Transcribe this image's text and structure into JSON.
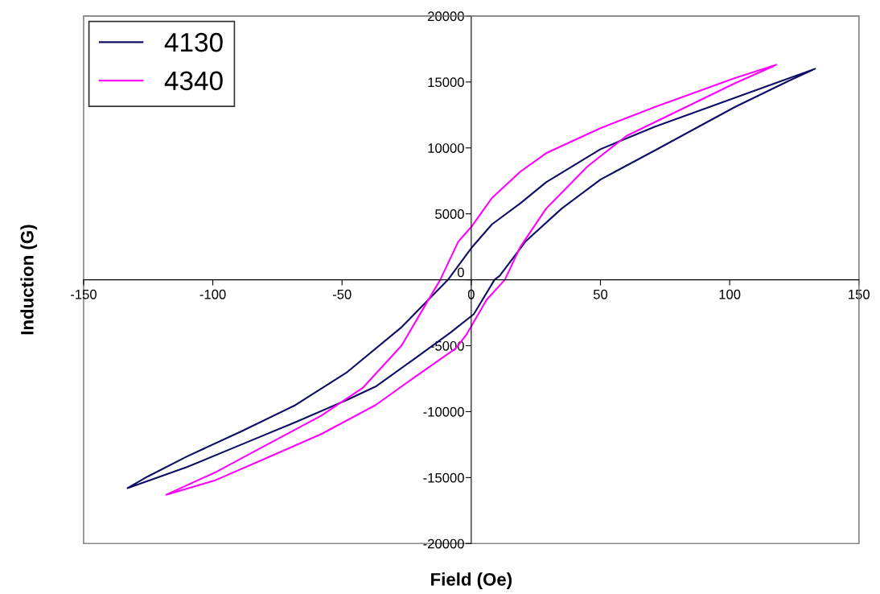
{
  "chart_data": {
    "type": "line",
    "xlabel": "Field (Oe)",
    "ylabel": "Induction (G)",
    "xlim": [
      -150,
      150
    ],
    "xticks": [
      -150,
      -100,
      -50,
      0,
      50,
      100,
      150
    ],
    "ylim": [
      -20000,
      20000
    ],
    "yticks": [
      -20000,
      -15000,
      -10000,
      -5000,
      0,
      5000,
      10000,
      15000,
      20000
    ],
    "grid": false,
    "legend": "top left",
    "marker": "none",
    "line_style": "solid",
    "series": [
      {
        "name": "4130",
        "color": "#0d0d66",
        "x": [
          133,
          102,
          71,
          50,
          29,
          19,
          8,
          0,
          -9,
          -27,
          -48,
          -68,
          -89,
          -110,
          -125,
          -133,
          -110,
          -89,
          -68,
          -48,
          -37,
          -22,
          -8,
          1,
          9,
          11,
          21,
          35,
          50,
          71,
          102,
          123,
          132
        ],
        "values": [
          16000,
          13800,
          11600,
          9900,
          7400,
          5800,
          4200,
          2400,
          0,
          -3600,
          -7000,
          -9500,
          -11500,
          -13400,
          -14900,
          -15800,
          -14200,
          -12500,
          -10800,
          -9100,
          -8100,
          -6000,
          -4000,
          -2600,
          0,
          300,
          2900,
          5400,
          7600,
          9800,
          13100,
          15100,
          15900
        ]
      },
      {
        "name": "4340",
        "color": "#ff00ff",
        "x": [
          118,
          102,
          71,
          50,
          29,
          19,
          8,
          0,
          -5,
          -12,
          -27,
          -42,
          -58,
          -79,
          -99,
          -118,
          -99,
          -79,
          -58,
          -37,
          -22,
          -6,
          -2,
          6,
          13,
          19,
          29,
          45,
          60,
          81,
          102,
          117
        ],
        "values": [
          16300,
          15300,
          13100,
          11500,
          9600,
          8200,
          6200,
          4000,
          2900,
          0,
          -5000,
          -8200,
          -10300,
          -12500,
          -14600,
          -16300,
          -15200,
          -13500,
          -11700,
          -9500,
          -7400,
          -5200,
          -4200,
          -1500,
          0,
          2500,
          5400,
          8600,
          10900,
          12900,
          14900,
          16200
        ]
      }
    ]
  }
}
